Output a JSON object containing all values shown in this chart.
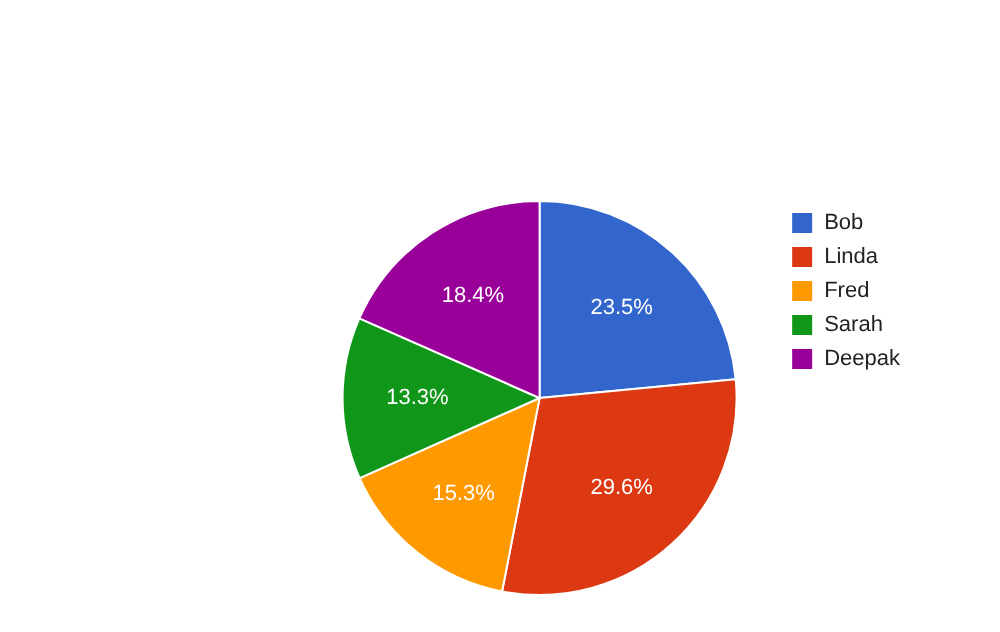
{
  "chart_data": {
    "type": "pie",
    "categories": [
      "Bob",
      "Linda",
      "Fred",
      "Sarah",
      "Deepak"
    ],
    "values": [
      23.5,
      29.6,
      15.3,
      13.3,
      18.4
    ],
    "value_labels": [
      "23.5%",
      "29.6%",
      "15.3%",
      "13.3%",
      "18.4%"
    ],
    "colors": [
      "#3366cc",
      "#dc3912",
      "#ff9900",
      "#109618",
      "#990099"
    ],
    "legend": "right"
  }
}
